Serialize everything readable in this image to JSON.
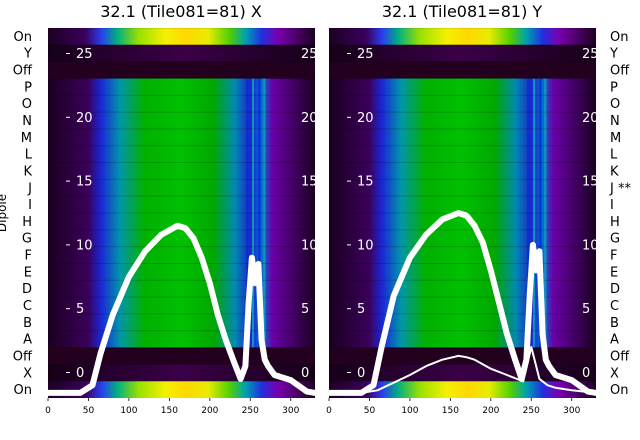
{
  "chart_data": [
    {
      "type": "heatmap",
      "title": "32.1 (Tile081=81) X",
      "ylabel": "Dipole",
      "row_labels": [
        "On",
        "Y",
        "Off",
        "P",
        "O",
        "N",
        "M",
        "L",
        "K",
        "J",
        "I",
        "H",
        "G",
        "F",
        "E",
        "D",
        "C",
        "B",
        "A",
        "Off",
        "X",
        "On"
      ],
      "x_ticks": [
        0,
        50,
        100,
        150,
        200,
        250,
        300
      ],
      "xlim": [
        0,
        330
      ],
      "overlay_y_ticks": [
        0,
        5,
        10,
        15,
        20,
        25
      ],
      "overlay_ylim": [
        -2,
        27
      ],
      "series": [
        {
          "x": [
            0,
            40,
            55,
            65,
            80,
            100,
            120,
            140,
            160,
            170,
            180,
            190,
            200,
            210,
            220,
            230,
            238,
            244,
            248,
            252,
            256,
            260,
            264,
            268,
            272,
            280,
            300,
            320,
            330
          ],
          "y": [
            -1.6,
            -1.6,
            -1.0,
            1.5,
            4.5,
            7.5,
            9.5,
            10.8,
            11.5,
            11.3,
            10.5,
            9.0,
            7.0,
            4.5,
            2.5,
            0.8,
            -0.5,
            0.5,
            5.5,
            9.0,
            7.0,
            8.5,
            2.5,
            1.0,
            0.5,
            -0.2,
            -0.6,
            -1.5,
            -1.6
          ]
        }
      ]
    },
    {
      "type": "heatmap",
      "title": "32.1 (Tile081=81) Y",
      "row_labels": [
        "On",
        "Y",
        "Off",
        "P",
        "O",
        "N",
        "M",
        "L",
        "K",
        "J **",
        "I",
        "H",
        "G",
        "F",
        "E",
        "D",
        "C",
        "B",
        "A",
        "Off",
        "X",
        "On"
      ],
      "x_ticks": [
        0,
        50,
        100,
        150,
        200,
        250,
        300
      ],
      "xlim": [
        0,
        330
      ],
      "overlay_y_ticks": [
        0,
        5,
        10,
        15,
        20,
        25
      ],
      "overlay_ylim": [
        -2,
        27
      ],
      "series": [
        {
          "x": [
            0,
            40,
            55,
            65,
            80,
            100,
            120,
            140,
            160,
            170,
            180,
            190,
            200,
            210,
            220,
            230,
            238,
            244,
            248,
            252,
            256,
            260,
            264,
            268,
            272,
            280,
            300,
            320,
            330
          ],
          "y": [
            -1.6,
            -1.6,
            -1.0,
            2.0,
            6.0,
            9.0,
            10.8,
            12.0,
            12.5,
            12.3,
            11.5,
            10.2,
            8.0,
            5.5,
            3.0,
            1.0,
            -0.5,
            1.0,
            6.0,
            10.0,
            8.0,
            9.5,
            3.0,
            1.0,
            0.5,
            -0.2,
            -0.6,
            -1.5,
            -1.6
          ]
        },
        {
          "x": [
            0,
            40,
            60,
            80,
            100,
            120,
            140,
            160,
            170,
            180,
            200,
            220,
            240,
            250,
            260,
            270,
            280,
            300,
            330
          ],
          "y": [
            -1.6,
            -1.6,
            -1.4,
            -0.8,
            -0.2,
            0.5,
            1.0,
            1.3,
            1.2,
            1.0,
            0.3,
            -0.2,
            -0.7,
            2.0,
            -0.5,
            -1.0,
            -1.2,
            -1.4,
            -1.6
          ]
        }
      ]
    }
  ]
}
